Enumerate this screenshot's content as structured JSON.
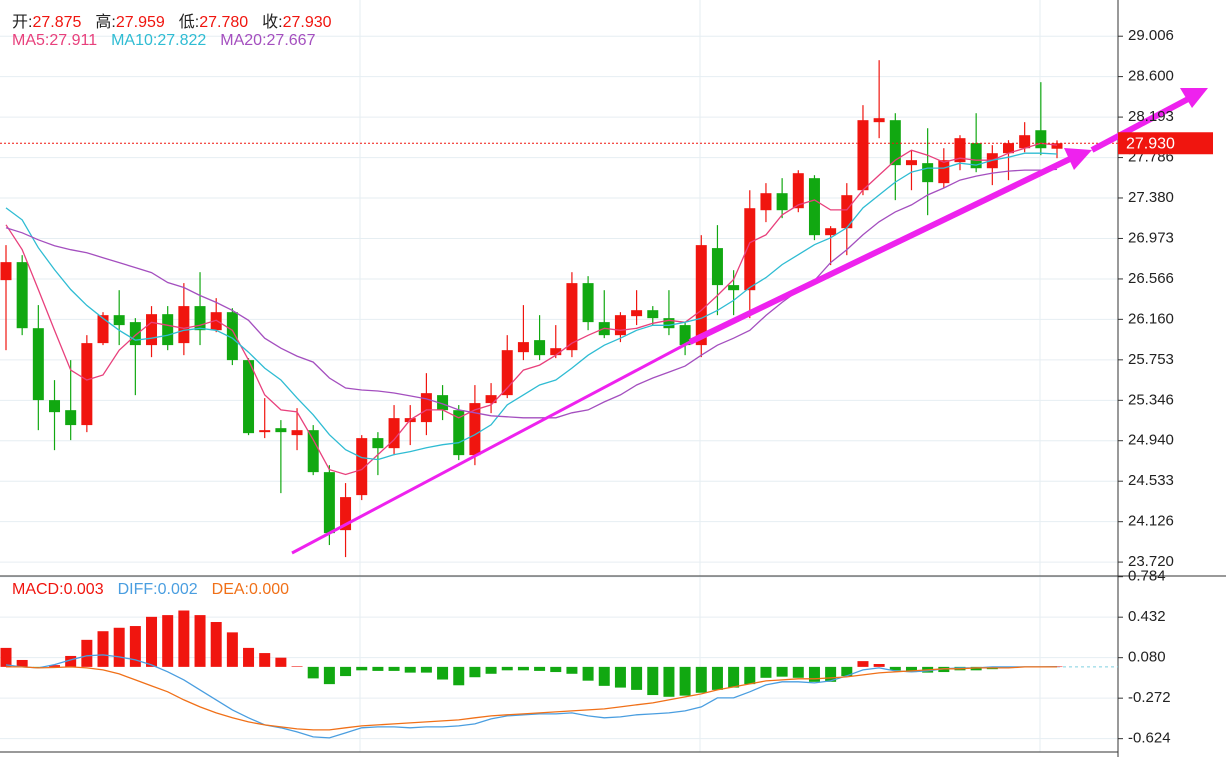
{
  "chart_data": [
    {
      "type": "candlestick",
      "quote": [
        {
          "label": "开:",
          "value": 27.875
        },
        {
          "label": "高:",
          "value": 27.959
        },
        {
          "label": "低:",
          "value": 27.78,
          "value_label": "27.780"
        },
        {
          "label": "收:",
          "value": 27.93,
          "value_label": "27.930"
        }
      ],
      "last_price": {
        "value": 27.93,
        "label": "27.930"
      },
      "up_color": "#f0150f",
      "down_color": "#11a811",
      "open": [
        26.554,
        26.735,
        26.071,
        25.348,
        25.247,
        25.097,
        25.921,
        26.202,
        26.132,
        25.901,
        26.212,
        25.921,
        26.293,
        26.051,
        26.232,
        25.75,
        25.026,
        25.066,
        24.996,
        25.046,
        24.624,
        24.041,
        24.393,
        24.966,
        24.865,
        25.127,
        25.127,
        25.398,
        25.247,
        24.795,
        25.318,
        25.398,
        25.83,
        25.951,
        25.8,
        25.85,
        26.524,
        26.132,
        26.001,
        26.192,
        26.252,
        26.172,
        26.102,
        25.901,
        26.876,
        26.504,
        26.453,
        27.257,
        27.428,
        27.277,
        27.579,
        27.006,
        27.076,
        27.458,
        28.142,
        28.162,
        27.71,
        27.73,
        27.529,
        27.74,
        27.931,
        27.679,
        27.83,
        27.88,
        28.061,
        27.875
      ],
      "high": [
        26.906,
        26.805,
        26.303,
        25.549,
        25.75,
        26.001,
        26.232,
        26.453,
        26.172,
        26.293,
        26.293,
        26.524,
        26.634,
        26.373,
        26.272,
        25.77,
        25.368,
        25.147,
        25.267,
        25.097,
        24.694,
        24.514,
        24.996,
        25.026,
        25.298,
        25.298,
        25.619,
        25.499,
        25.298,
        25.499,
        25.519,
        26.001,
        26.303,
        26.202,
        26.102,
        26.634,
        26.594,
        26.453,
        26.232,
        26.453,
        26.293,
        26.453,
        26.132,
        27.006,
        27.107,
        26.654,
        27.458,
        27.529,
        27.579,
        27.659,
        27.609,
        27.097,
        27.529,
        28.313,
        28.765,
        28.232,
        27.86,
        28.081,
        27.88,
        28.011,
        28.232,
        27.911,
        27.961,
        28.142,
        28.544,
        27.959
      ],
      "low": [
        25.85,
        26.001,
        25.046,
        24.845,
        24.946,
        25.026,
        25.901,
        25.901,
        25.398,
        25.78,
        25.85,
        25.8,
        25.901,
        26.031,
        25.7,
        24.996,
        24.966,
        24.413,
        24.845,
        24.594,
        23.891,
        23.77,
        24.343,
        24.594,
        24.795,
        24.896,
        24.996,
        25.147,
        24.745,
        24.694,
        25.217,
        25.368,
        25.75,
        25.75,
        25.77,
        25.78,
        26.051,
        25.971,
        25.931,
        26.102,
        26.102,
        26.001,
        25.8,
        25.78,
        26.202,
        26.202,
        26.172,
        27.137,
        27.177,
        27.237,
        26.956,
        26.705,
        26.805,
        27.408,
        27.981,
        27.358,
        27.458,
        27.207,
        27.478,
        27.659,
        27.639,
        27.509,
        27.559,
        27.84,
        27.81,
        27.78
      ],
      "close": [
        26.735,
        26.071,
        25.348,
        25.227,
        25.097,
        25.921,
        26.202,
        26.102,
        25.901,
        26.212,
        25.901,
        26.293,
        26.051,
        26.232,
        25.75,
        25.016,
        25.046,
        25.026,
        25.046,
        24.624,
        24.011,
        24.373,
        24.966,
        24.865,
        25.167,
        25.167,
        25.418,
        25.247,
        24.795,
        25.318,
        25.398,
        25.85,
        25.931,
        25.8,
        25.87,
        26.524,
        26.132,
        26.001,
        26.202,
        26.252,
        26.172,
        26.071,
        25.901,
        26.906,
        26.504,
        26.453,
        27.277,
        27.428,
        27.257,
        27.629,
        27.006,
        27.076,
        27.408,
        28.162,
        28.182,
        27.71,
        27.76,
        27.539,
        27.76,
        27.981,
        27.679,
        27.83,
        27.931,
        28.011,
        27.88,
        27.93
      ],
      "series": [
        {
          "label": "MA5:",
          "last": 27.911,
          "color": "#e8407c",
          "values": [
            27.11,
            26.86,
            26.46,
            26.05,
            25.65,
            25.55,
            25.6,
            25.85,
            26.0,
            26.13,
            26.1,
            26.07,
            26.1,
            26.15,
            26.05,
            25.75,
            25.4,
            25.25,
            25.23,
            24.95,
            24.65,
            24.6,
            24.65,
            24.8,
            24.95,
            25.15,
            25.25,
            25.25,
            25.17,
            25.25,
            25.3,
            25.47,
            25.65,
            25.7,
            25.8,
            25.92,
            26.0,
            26.07,
            26.05,
            26.07,
            26.12,
            26.15,
            26.13,
            26.25,
            26.4,
            26.56,
            26.93,
            27.01,
            27.21,
            27.31,
            27.36,
            27.26,
            27.26,
            27.46,
            27.61,
            27.76,
            27.86,
            27.81,
            27.74,
            27.78,
            27.76,
            27.76,
            27.83,
            27.88,
            27.93,
            27.911
          ]
        },
        {
          "label": "MA10:",
          "last": 27.822,
          "color": "#2fbcd3",
          "values": [
            27.28,
            27.16,
            26.88,
            26.66,
            26.46,
            26.3,
            26.17,
            26.05,
            25.95,
            25.97,
            26.0,
            26.05,
            26.07,
            26.05,
            25.97,
            25.83,
            25.67,
            25.55,
            25.37,
            25.2,
            25.0,
            24.85,
            24.77,
            24.75,
            24.8,
            24.83,
            24.87,
            24.9,
            24.92,
            25.0,
            25.1,
            25.3,
            25.4,
            25.5,
            25.55,
            25.67,
            25.8,
            25.9,
            25.97,
            26.05,
            26.1,
            26.1,
            26.13,
            26.17,
            26.25,
            26.35,
            26.48,
            26.58,
            26.71,
            26.81,
            26.91,
            26.98,
            27.08,
            27.28,
            27.41,
            27.54,
            27.64,
            27.68,
            27.68,
            27.73,
            27.71,
            27.76,
            27.79,
            27.83,
            27.83,
            27.822
          ]
        },
        {
          "label": "MA20:",
          "last": 27.667,
          "color": "#a44fbf",
          "values": [
            27.08,
            27.03,
            26.96,
            26.9,
            26.86,
            26.83,
            26.78,
            26.73,
            26.68,
            26.63,
            26.53,
            26.48,
            26.4,
            26.33,
            26.25,
            26.15,
            25.97,
            25.87,
            25.79,
            25.73,
            25.57,
            25.47,
            25.45,
            25.44,
            25.42,
            25.39,
            25.36,
            25.31,
            25.25,
            25.22,
            25.19,
            25.18,
            25.17,
            25.17,
            25.17,
            25.22,
            25.25,
            25.33,
            25.4,
            25.5,
            25.57,
            25.63,
            25.69,
            25.8,
            25.9,
            25.97,
            26.05,
            26.2,
            26.33,
            26.45,
            26.55,
            26.73,
            26.86,
            27.01,
            27.14,
            27.24,
            27.31,
            27.41,
            27.48,
            27.56,
            27.6,
            27.63,
            27.65,
            27.66,
            27.66,
            27.667
          ]
        }
      ],
      "ylim": [
        23.58,
        29.37
      ],
      "yticks": [
        29.006,
        {
          "value": 28.6,
          "label": "28.600"
        },
        28.193,
        27.786,
        {
          "value": 27.38,
          "label": "27.380"
        },
        26.973,
        26.566,
        {
          "value": 26.16,
          "label": "26.160"
        },
        25.753,
        25.346,
        {
          "value": 24.94,
          "label": "24.940"
        },
        24.533,
        24.126,
        {
          "value": 23.72,
          "label": "23.720"
        }
      ],
      "grid": true
    },
    {
      "type": "macd",
      "histogram": {
        "label": "MACD:",
        "last": 0.003,
        "color": "#f0150f",
        "up_color": "#f0150f",
        "down_color": "#11a811",
        "values": [
          0.165,
          0.06,
          -0.01,
          0.015,
          0.095,
          0.235,
          0.31,
          0.34,
          0.355,
          0.435,
          0.45,
          0.49,
          0.45,
          0.39,
          0.3,
          0.165,
          0.12,
          0.08,
          0.005,
          -0.1,
          -0.15,
          -0.08,
          -0.03,
          -0.035,
          -0.035,
          -0.05,
          -0.05,
          -0.11,
          -0.16,
          -0.09,
          -0.06,
          -0.03,
          -0.03,
          -0.035,
          -0.045,
          -0.06,
          -0.12,
          -0.165,
          -0.18,
          -0.2,
          -0.245,
          -0.26,
          -0.25,
          -0.225,
          -0.2,
          -0.18,
          -0.15,
          -0.095,
          -0.085,
          -0.095,
          -0.13,
          -0.13,
          -0.08,
          0.05,
          0.025,
          -0.03,
          -0.045,
          -0.05,
          -0.045,
          -0.03,
          -0.03,
          -0.02,
          -0.01,
          -0.005,
          0.002,
          0.003
        ]
      },
      "series": [
        {
          "label": "DIFF:",
          "last": 0.002,
          "color": "#4a9ee0",
          "values": [
            0.017,
            0.0,
            -0.009,
            0.02,
            0.061,
            0.096,
            0.104,
            0.087,
            0.061,
            0.017,
            -0.043,
            -0.113,
            -0.2,
            -0.287,
            -0.374,
            -0.443,
            -0.504,
            -0.53,
            -0.565,
            -0.609,
            -0.617,
            -0.574,
            -0.53,
            -0.522,
            -0.522,
            -0.53,
            -0.522,
            -0.522,
            -0.513,
            -0.496,
            -0.452,
            -0.426,
            -0.417,
            -0.409,
            -0.409,
            -0.4,
            -0.426,
            -0.443,
            -0.435,
            -0.417,
            -0.409,
            -0.4,
            -0.383,
            -0.348,
            -0.27,
            -0.27,
            -0.217,
            -0.157,
            -0.13,
            -0.13,
            -0.139,
            -0.122,
            -0.078,
            -0.026,
            -0.009,
            -0.035,
            -0.043,
            -0.035,
            -0.017,
            -0.009,
            -0.009,
            0,
            0,
            0,
            0,
            0.002
          ]
        },
        {
          "label": "DEA:",
          "last": 0,
          "last_label": "0.000",
          "color": "#f07018",
          "values": [
            0,
            0,
            -0.009,
            -0.005,
            0,
            -0.009,
            -0.026,
            -0.061,
            -0.113,
            -0.165,
            -0.217,
            -0.287,
            -0.348,
            -0.4,
            -0.443,
            -0.478,
            -0.504,
            -0.522,
            -0.539,
            -0.548,
            -0.548,
            -0.53,
            -0.513,
            -0.504,
            -0.496,
            -0.487,
            -0.478,
            -0.47,
            -0.461,
            -0.443,
            -0.426,
            -0.417,
            -0.409,
            -0.4,
            -0.391,
            -0.383,
            -0.374,
            -0.365,
            -0.348,
            -0.33,
            -0.313,
            -0.287,
            -0.261,
            -0.235,
            -0.2,
            -0.174,
            -0.148,
            -0.122,
            -0.113,
            -0.104,
            -0.104,
            -0.096,
            -0.087,
            -0.07,
            -0.052,
            -0.043,
            -0.035,
            -0.026,
            -0.017,
            -0.017,
            -0.009,
            -0.009,
            -0.009,
            0,
            0,
            0
          ]
        }
      ],
      "ylim": [
        -0.74,
        0.79
      ],
      "yticks": [
        0.784,
        0.432,
        {
          "value": 0.08,
          "label": "0.080"
        },
        -0.272,
        -0.624
      ],
      "grid": true
    }
  ]
}
